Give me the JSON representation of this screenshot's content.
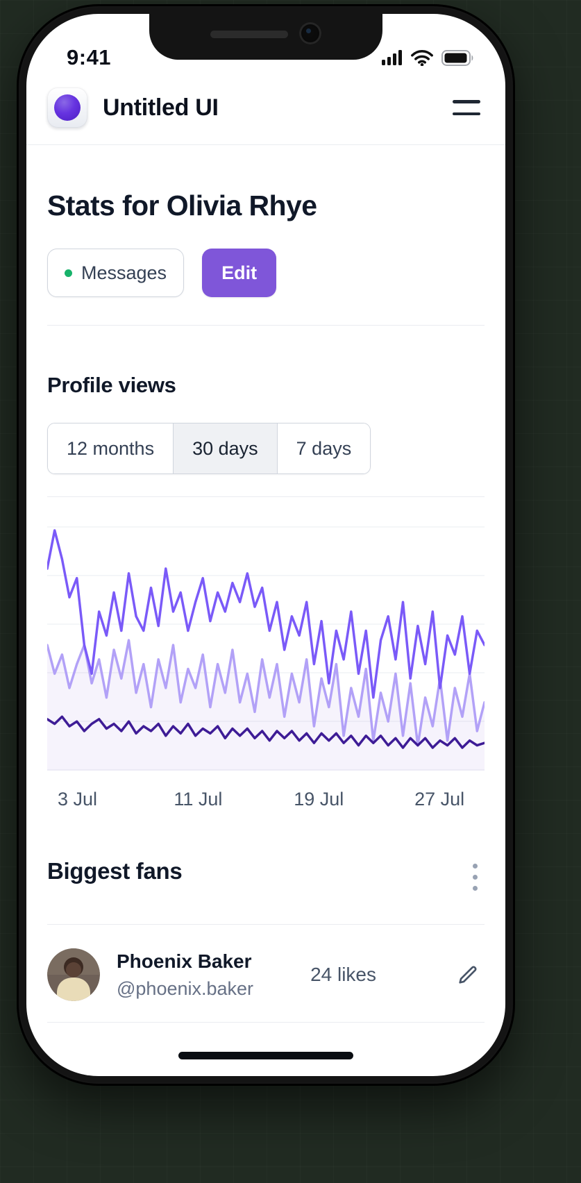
{
  "status_bar": {
    "time": "9:41"
  },
  "header": {
    "app_name": "Untitled UI"
  },
  "stats": {
    "title": "Stats for Olivia Rhye",
    "messages_chip": "Messages",
    "edit_button": "Edit"
  },
  "profile_views": {
    "title": "Profile views",
    "selected_range": "30 days",
    "ranges": [
      {
        "label": "12 months"
      },
      {
        "label": "30 days"
      },
      {
        "label": "7 days"
      }
    ]
  },
  "chart_data": {
    "type": "line",
    "title": "Profile views - 30 days",
    "xlabel": "",
    "ylabel": "",
    "ylim": [
      0,
      100
    ],
    "grid": true,
    "legend": "none",
    "x_tick_labels": [
      "3 Jul",
      "11 Jul",
      "19 Jul",
      "27 Jul"
    ],
    "x_tick_positions_pct": [
      6.9,
      34.5,
      62.1,
      89.7
    ],
    "series": [
      {
        "name": "light-purple",
        "color": "#b2a1f7",
        "area": true,
        "values": [
          52,
          40,
          48,
          34,
          44,
          52,
          36,
          46,
          30,
          50,
          38,
          54,
          32,
          44,
          26,
          46,
          34,
          52,
          28,
          42,
          34,
          48,
          26,
          44,
          32,
          50,
          28,
          40,
          24,
          46,
          30,
          44,
          22,
          40,
          28,
          46,
          18,
          38,
          26,
          44,
          14,
          34,
          22,
          42,
          12,
          32,
          20,
          40,
          14,
          36,
          10,
          30,
          18,
          38,
          12,
          34,
          22,
          40,
          16,
          28
        ]
      },
      {
        "name": "medium-purple",
        "color": "#7a5af8",
        "area": false,
        "values": [
          84,
          100,
          88,
          72,
          80,
          52,
          40,
          66,
          56,
          74,
          58,
          82,
          64,
          58,
          76,
          60,
          84,
          66,
          74,
          58,
          70,
          80,
          62,
          74,
          66,
          78,
          70,
          82,
          68,
          76,
          58,
          70,
          50,
          64,
          56,
          70,
          44,
          62,
          36,
          58,
          46,
          66,
          40,
          58,
          30,
          54,
          64,
          46,
          70,
          38,
          60,
          44,
          66,
          34,
          56,
          48,
          64,
          40,
          58,
          52
        ]
      },
      {
        "name": "dark-purple",
        "color": "#3e1c96",
        "area": false,
        "values": [
          21,
          19,
          22,
          18,
          20,
          16,
          19,
          21,
          17,
          19,
          16,
          20,
          15,
          18,
          16,
          19,
          14,
          18,
          15,
          19,
          14,
          17,
          15,
          18,
          13,
          17,
          14,
          17,
          13,
          16,
          12,
          16,
          13,
          16,
          12,
          15,
          11,
          15,
          12,
          15,
          11,
          14,
          10,
          14,
          11,
          14,
          10,
          13,
          9,
          13,
          10,
          13,
          9,
          12,
          10,
          13,
          9,
          12,
          10,
          11
        ]
      }
    ]
  },
  "fans": {
    "title": "Biggest fans",
    "items": [
      {
        "name": "Phoenix Baker",
        "handle": "@phoenix.baker",
        "likes": "24 likes"
      }
    ]
  }
}
